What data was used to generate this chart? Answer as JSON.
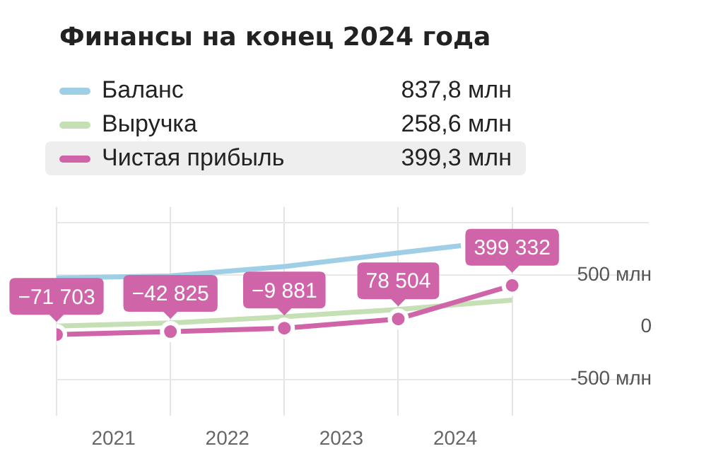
{
  "chart_data": {
    "type": "line",
    "title": "Финансы на конец 2024 года",
    "legend": "top",
    "grid": true,
    "marker": "circle",
    "line_style": "solid",
    "annotations": [
      "837,8 млн",
      "258,6 млн",
      "399,3 млн",
      {
        "text": "−71 703",
        "x": 2020.5,
        "y": -71.703
      },
      {
        "text": "−42 825",
        "x": 2021.5,
        "y": -42.825
      },
      {
        "text": "−9 881",
        "x": 2022.5,
        "y": -9.881
      },
      {
        "text": "78 504",
        "x": 2023.5,
        "y": 78.504
      },
      {
        "text": "399 332",
        "x": 2024.5,
        "y": 399.332
      }
    ],
    "xlim": [
      2020.5,
      2025.7
    ],
    "xticks": [
      {
        "value": 2020.5,
        "label": null
      },
      {
        "value": 2021,
        "label": "2021"
      },
      {
        "value": 2021.5,
        "label": null
      },
      {
        "value": 2022,
        "label": "2022"
      },
      {
        "value": 2022.5,
        "label": null
      },
      {
        "value": 2023,
        "label": "2023"
      },
      {
        "value": 2023.5,
        "label": null
      },
      {
        "value": 2024,
        "label": "2024"
      },
      {
        "value": 2024.5,
        "label": null
      }
    ],
    "ylim": [
      -850,
      1150
    ],
    "yticks": [
      {
        "value": -500,
        "label": "-500 млн"
      },
      0,
      {
        "value": 500,
        "label": "500 млн"
      },
      {
        "value": 1000,
        "label": null
      }
    ],
    "x": [
      2020.5,
      2021.5,
      2022.5,
      2023.5,
      2024.5
    ],
    "series": [
      {
        "name": "Баланс",
        "color": "#9fcfe6",
        "marker": "none",
        "x": [
          2020.5,
          2021.5,
          2022.5,
          2023.5,
          2024.05
        ],
        "values": [
          470,
          490,
          580,
          710,
          780
        ]
      },
      {
        "name": "Выручка",
        "color": "#c5e0b4",
        "marker": "none",
        "values": [
          10,
          40,
          100,
          170,
          258.6
        ]
      },
      {
        "name": "Чистая прибыль",
        "color": "#d064a8",
        "values": [
          -71.703,
          -42.825,
          -9.881,
          78.504,
          399.332
        ]
      }
    ]
  }
}
